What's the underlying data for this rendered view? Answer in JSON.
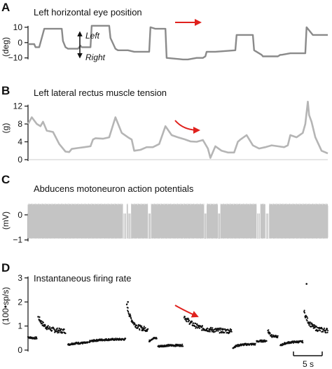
{
  "colors": {
    "trace": "#8a8a8a",
    "tension": "#b5b5b5",
    "spikes": "#c4c4c4",
    "dots": "#111111",
    "arrow": "#e0211d",
    "axis": "#222222"
  },
  "annotations": {
    "left": "Left",
    "right": "Right",
    "scalebar": "5 s"
  },
  "chart_data": [
    {
      "panel": "A",
      "type": "line",
      "title": "Left horizontal eye position",
      "ylabel": "(deg)",
      "yticks": [
        10,
        0,
        -10
      ],
      "ylim": [
        -17,
        15
      ],
      "xlim": [
        0,
        24
      ],
      "series": [
        {
          "x": [
            0,
            0.5,
            0.6,
            0.9,
            1.0,
            1.2,
            1.3,
            2.7,
            2.8,
            3.0,
            3.2,
            3.6,
            4.0,
            4.2,
            4.3,
            5.0,
            5.1,
            6.5,
            6.6,
            7.0,
            7.2,
            8.0,
            8.5,
            8.6,
            9.7,
            9.8,
            10.2,
            10.8,
            11.0,
            11.1,
            12.4,
            12.5,
            12.8,
            13.5,
            14.0,
            14.2,
            14.3,
            14.9,
            15.0,
            16.6,
            16.7,
            17.5,
            18.0,
            18.1,
            18.7,
            18.8,
            19.5,
            20.0,
            20.2,
            20.3,
            21.0,
            21.1,
            22.2,
            22.3,
            22.8,
            23.5,
            24.0
          ],
          "y": [
            -1,
            -1,
            -3,
            -3,
            0,
            6,
            9,
            9,
            1,
            -3,
            -4,
            -4,
            -4,
            -2,
            -3,
            -3,
            11,
            11,
            3,
            -4,
            -5,
            -5,
            -6,
            -6,
            -6,
            10,
            9,
            9,
            9,
            -10,
            -11,
            -11,
            -11,
            -10,
            -10,
            -9,
            -6,
            -6,
            -6,
            -5,
            5,
            5,
            5,
            -5,
            -8,
            -9,
            -9,
            -9,
            -8,
            -8,
            -7,
            -7,
            -7,
            10,
            5,
            5,
            5
          ]
        }
      ]
    },
    {
      "panel": "B",
      "type": "line",
      "title": "Left lateral rectus muscle tension",
      "ylabel": "(g)",
      "yticks": [
        12,
        8,
        4,
        0
      ],
      "ylim": [
        0,
        13.5
      ],
      "xlim": [
        0,
        24
      ],
      "series": [
        {
          "x": [
            0,
            0.3,
            0.7,
            1.0,
            1.2,
            1.5,
            2.0,
            2.5,
            3.0,
            3.3,
            3.5,
            4.0,
            4.5,
            5.0,
            5.2,
            5.4,
            6.0,
            6.5,
            7.0,
            7.5,
            8.0,
            8.3,
            8.5,
            9.0,
            9.5,
            10.0,
            10.5,
            11.0,
            11.5,
            12.0,
            12.5,
            12.7,
            13.0,
            13.5,
            14.0,
            14.4,
            14.6,
            15.0,
            15.5,
            16.0,
            16.5,
            16.8,
            17.0,
            17.5,
            18.0,
            18.5,
            19.0,
            19.5,
            20.0,
            20.5,
            20.8,
            21.0,
            21.5,
            22.0,
            22.2,
            22.4,
            22.5,
            22.7,
            23.0,
            23.5,
            24.0
          ],
          "y": [
            8,
            9.5,
            8.0,
            7.5,
            8.5,
            6.5,
            6.2,
            3.5,
            1.8,
            1.7,
            2.4,
            2.6,
            2.8,
            3.0,
            4.5,
            4.8,
            4.7,
            5.0,
            9.5,
            6.0,
            5.0,
            4.5,
            2.0,
            2.2,
            2.8,
            2.8,
            3.5,
            7.5,
            5.5,
            5.0,
            4.6,
            4.4,
            4.1,
            4.0,
            4.4,
            2.5,
            0.4,
            3.0,
            2.0,
            1.6,
            1.6,
            4.0,
            4.5,
            5.5,
            3.2,
            2.5,
            2.8,
            3.2,
            3.0,
            2.8,
            3.2,
            5.5,
            5.0,
            6.0,
            8.0,
            13.0,
            10.0,
            8.5,
            5.0,
            2.0,
            1.4
          ]
        }
      ]
    },
    {
      "panel": "C",
      "type": "line",
      "title": "Abducens motoneuron action potentials",
      "ylabel": "(mV)",
      "yticks": [
        0,
        -1
      ],
      "ylim": [
        -1.4,
        0.75
      ],
      "xlim": [
        0,
        24
      ],
      "amplitude": {
        "upper": 0.45,
        "lower": -0.95
      },
      "silent_intervals": [
        [
          7.6,
          7.9
        ],
        [
          8.0,
          8.25
        ],
        [
          9.6,
          9.85
        ],
        [
          14.1,
          14.3
        ],
        [
          15.2,
          15.4
        ],
        [
          18.3,
          18.6
        ],
        [
          19.0,
          19.3
        ]
      ]
    },
    {
      "panel": "D",
      "type": "scatter",
      "title": "Instantaneous firing rate",
      "ylabel": "(100•sp/s)",
      "yticks": [
        3,
        2,
        1,
        0
      ],
      "ylim": [
        0,
        3.2
      ],
      "xlim": [
        0,
        24
      ],
      "segments": [
        {
          "x0": 0.0,
          "x1": 0.7,
          "start": 0.55,
          "end": 0.5
        },
        {
          "x0": 0.8,
          "x1": 3.0,
          "start": 1.4,
          "end": 0.78
        },
        {
          "x0": 3.2,
          "x1": 4.8,
          "start": 0.22,
          "end": 0.3
        },
        {
          "x0": 4.9,
          "x1": 7.8,
          "start": 0.35,
          "end": 0.45
        },
        {
          "x0": 7.9,
          "x1": 9.6,
          "start": 1.9,
          "end": 0.85
        },
        {
          "x0": 9.7,
          "x1": 10.3,
          "start": 0.35,
          "end": 0.5
        },
        {
          "x0": 10.4,
          "x1": 12.4,
          "start": 0.15,
          "end": 0.2
        },
        {
          "x0": 12.5,
          "x1": 16.3,
          "start": 1.4,
          "end": 0.78
        },
        {
          "x0": 16.4,
          "x1": 18.2,
          "start": 0.1,
          "end": 0.25
        },
        {
          "x0": 18.3,
          "x1": 19.1,
          "start": 0.35,
          "end": 0.38
        },
        {
          "x0": 19.2,
          "x1": 20.0,
          "start": 0.85,
          "end": 0.55
        },
        {
          "x0": 20.2,
          "x1": 22.0,
          "start": 0.18,
          "end": 0.35
        },
        {
          "x0": 22.1,
          "x1": 24.0,
          "start": 1.6,
          "end": 0.8
        }
      ],
      "peaks": [
        {
          "x": 22.3,
          "y": 2.75
        },
        {
          "x": 8.0,
          "y": 2.0
        }
      ]
    }
  ]
}
